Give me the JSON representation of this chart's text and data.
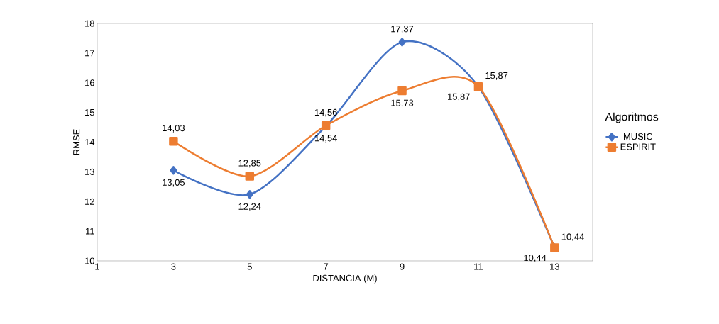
{
  "chart_data": {
    "type": "line",
    "xlabel": "DISTANCIA (M)",
    "ylabel": "RMSE",
    "legend_title": "Algoritmos",
    "legend": "right",
    "grid": false,
    "line_style": "solid",
    "x": [
      3,
      5,
      7,
      9,
      11,
      13
    ],
    "xlim": [
      1,
      14
    ],
    "xticks": [
      1,
      3,
      5,
      7,
      9,
      11,
      13
    ],
    "ylim": [
      10,
      18
    ],
    "yticks": [
      10,
      11,
      12,
      13,
      14,
      15,
      16,
      17,
      18
    ],
    "series": [
      {
        "name": "MUSIC",
        "color": "#4472c4",
        "marker": "diamond",
        "values": [
          13.05,
          12.24,
          14.54,
          17.37,
          15.87,
          10.44
        ],
        "value_labels": [
          "13,05",
          "12,24",
          "14,54",
          "17,37",
          "15,87",
          "10,44"
        ]
      },
      {
        "name": "ESPIRIT",
        "color": "#ed7d31",
        "marker": "square",
        "values": [
          14.03,
          12.85,
          14.56,
          15.73,
          15.87,
          10.44
        ],
        "value_labels": [
          "14,03",
          "12,85",
          "14,56",
          "15,73",
          "15,87",
          "10,44"
        ]
      }
    ]
  }
}
